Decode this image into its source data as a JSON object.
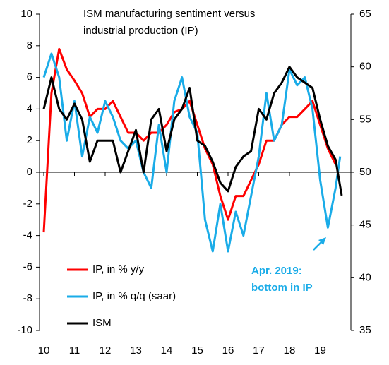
{
  "chart_data": {
    "type": "line",
    "title": [
      "ISM manufacturing sentiment versus",
      "industrial production (IP)"
    ],
    "annotation": [
      "Apr. 2019:",
      "bottom in IP"
    ],
    "annotation_color": "#1aace8",
    "xlim": [
      2010,
      2020
    ],
    "xticks": [
      {
        "value": 2010,
        "label": "10"
      },
      {
        "value": 2011,
        "label": "11"
      },
      {
        "value": 2012,
        "label": "12"
      },
      {
        "value": 2013,
        "label": "13"
      },
      {
        "value": 2014,
        "label": "14"
      },
      {
        "value": 2015,
        "label": "15"
      },
      {
        "value": 2016,
        "label": "16"
      },
      {
        "value": 2017,
        "label": "17"
      },
      {
        "value": 2018,
        "label": "18"
      },
      {
        "value": 2019,
        "label": "19"
      }
    ],
    "ylim": [
      -10,
      10
    ],
    "yticks": [
      -10,
      -8,
      -6,
      -4,
      -2,
      0,
      2,
      4,
      6,
      8,
      10
    ],
    "y2lim": [
      35,
      65
    ],
    "y2ticks": [
      35,
      40,
      45,
      50,
      55,
      60,
      65
    ],
    "legend": "lower left",
    "series": [
      {
        "name": "IP, in % y/y",
        "color": "#ff0000",
        "x": [
          2010,
          2010.25,
          2010.5,
          2010.75,
          2011,
          2011.25,
          2011.5,
          2011.75,
          2012,
          2012.25,
          2012.5,
          2012.75,
          2013,
          2013.25,
          2013.5,
          2013.75,
          2014,
          2014.25,
          2014.5,
          2014.75,
          2015,
          2015.25,
          2015.5,
          2015.75,
          2016,
          2016.25,
          2016.5,
          2016.75,
          2017,
          2017.25,
          2017.5,
          2017.75,
          2018,
          2018.25,
          2018.5,
          2018.75,
          2019,
          2019.25,
          2019.5
        ],
        "values": [
          -3.8,
          5,
          7.8,
          6.5,
          5.8,
          5,
          3.5,
          4,
          4,
          4.5,
          3.5,
          2.5,
          2.5,
          2,
          2.5,
          2.5,
          3,
          3.8,
          4,
          4.5,
          3,
          1.5,
          0.5,
          -1.5,
          -3,
          -1.5,
          -1.5,
          -0.5,
          0.5,
          2,
          2,
          3,
          3.5,
          3.5,
          4,
          4.5,
          3,
          1.5,
          0.5
        ]
      },
      {
        "name": "IP, in % q/q (saar)",
        "color": "#1aace8",
        "x": [
          2010,
          2010.25,
          2010.5,
          2010.75,
          2011,
          2011.25,
          2011.5,
          2011.75,
          2012,
          2012.25,
          2012.5,
          2012.75,
          2013,
          2013.25,
          2013.5,
          2013.75,
          2014,
          2014.25,
          2014.5,
          2014.75,
          2015,
          2015.25,
          2015.5,
          2015.75,
          2016,
          2016.25,
          2016.5,
          2016.75,
          2017,
          2017.25,
          2017.5,
          2017.75,
          2018,
          2018.25,
          2018.5,
          2018.75,
          2019,
          2019.25,
          2019.5,
          2019.65
        ],
        "values": [
          6,
          7.5,
          6,
          2,
          4.5,
          1,
          3.5,
          2.5,
          4.5,
          3.5,
          2,
          1.5,
          2,
          0,
          -1,
          3,
          0,
          4.5,
          6,
          3.5,
          2.5,
          -3,
          -5,
          -2,
          -5,
          -2.5,
          -4,
          -1.5,
          1,
          5,
          2,
          3,
          6.5,
          5.5,
          6,
          4,
          -0.5,
          -3.5,
          -1,
          1
        ]
      },
      {
        "name": "ISM",
        "color": "#000000",
        "axis": "y2",
        "x": [
          2010,
          2010.25,
          2010.5,
          2010.75,
          2011,
          2011.25,
          2011.5,
          2011.75,
          2012,
          2012.25,
          2012.5,
          2012.75,
          2013,
          2013.25,
          2013.5,
          2013.75,
          2014,
          2014.25,
          2014.5,
          2014.75,
          2015,
          2015.25,
          2015.5,
          2015.75,
          2016,
          2016.25,
          2016.5,
          2016.75,
          2017,
          2017.25,
          2017.5,
          2017.75,
          2018,
          2018.25,
          2018.5,
          2018.75,
          2019,
          2019.25,
          2019.5,
          2019.7
        ],
        "values": [
          56,
          59,
          56,
          55,
          56.5,
          55,
          51,
          53,
          53,
          53,
          50,
          52,
          54,
          50,
          55,
          56,
          52,
          55,
          56,
          58,
          53,
          52.5,
          51,
          49,
          48.2,
          50.5,
          51.5,
          52,
          56,
          55,
          57.5,
          58.5,
          60,
          59,
          58.5,
          58,
          55,
          52.5,
          51.2,
          47.8
        ]
      }
    ]
  }
}
